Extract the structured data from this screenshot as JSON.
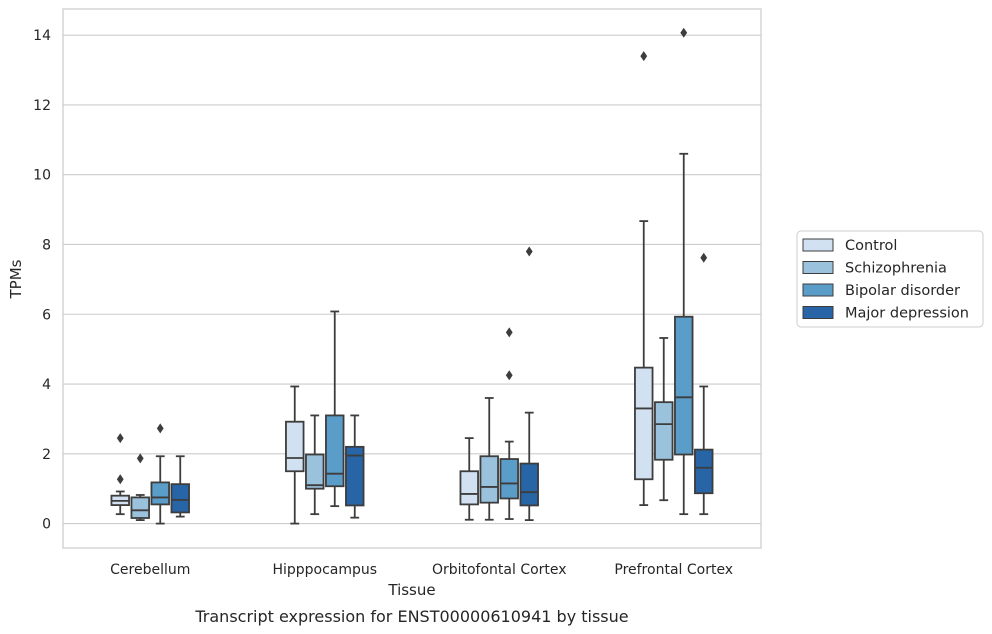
{
  "chart_data": {
    "type": "box",
    "title": "",
    "caption": "Transcript expression for ENST00000610941 by tissue",
    "xlabel": "Tissue",
    "ylabel": "TPMs",
    "ylim": [
      -0.7,
      14.75
    ],
    "yticks": [
      0,
      2,
      4,
      6,
      8,
      10,
      12,
      14
    ],
    "grid": true,
    "legend_position": "right",
    "categories": [
      "Cerebellum",
      "Hipppocampus",
      "Orbitofontal Cortex",
      "Prefrontal Cortex"
    ],
    "series": [
      {
        "name": "Control",
        "color": "#d1e1f1",
        "boxes": [
          {
            "whisker_low": 0.27,
            "q1": 0.53,
            "median": 0.65,
            "q3": 0.8,
            "whisker_high": 0.92,
            "outliers": [
              1.27,
              2.45
            ]
          },
          {
            "whisker_low": 0.0,
            "q1": 1.5,
            "median": 1.88,
            "q3": 2.92,
            "whisker_high": 3.93,
            "outliers": []
          },
          {
            "whisker_low": 0.11,
            "q1": 0.55,
            "median": 0.85,
            "q3": 1.5,
            "whisker_high": 2.45,
            "outliers": []
          },
          {
            "whisker_low": 0.53,
            "q1": 1.27,
            "median": 3.3,
            "q3": 4.47,
            "whisker_high": 8.67,
            "outliers": [
              13.4
            ]
          }
        ]
      },
      {
        "name": "Schizophrenia",
        "color": "#9bc2dd",
        "boxes": [
          {
            "whisker_low": 0.1,
            "q1": 0.16,
            "median": 0.38,
            "q3": 0.75,
            "whisker_high": 0.82,
            "outliers": [
              1.87
            ]
          },
          {
            "whisker_low": 0.27,
            "q1": 1.0,
            "median": 1.1,
            "q3": 1.98,
            "whisker_high": 3.1,
            "outliers": []
          },
          {
            "whisker_low": 0.11,
            "q1": 0.6,
            "median": 1.05,
            "q3": 1.93,
            "whisker_high": 3.6,
            "outliers": []
          },
          {
            "whisker_low": 0.67,
            "q1": 1.83,
            "median": 2.85,
            "q3": 3.48,
            "whisker_high": 5.32,
            "outliers": []
          }
        ]
      },
      {
        "name": "Bipolar disorder",
        "color": "#5b9dc9",
        "boxes": [
          {
            "whisker_low": 0.0,
            "q1": 0.55,
            "median": 0.75,
            "q3": 1.18,
            "whisker_high": 1.93,
            "outliers": [
              2.73
            ]
          },
          {
            "whisker_low": 0.5,
            "q1": 1.07,
            "median": 1.43,
            "q3": 3.1,
            "whisker_high": 6.08,
            "outliers": []
          },
          {
            "whisker_low": 0.13,
            "q1": 0.72,
            "median": 1.15,
            "q3": 1.85,
            "whisker_high": 2.35,
            "outliers": [
              4.25,
              5.48
            ]
          },
          {
            "whisker_low": 0.27,
            "q1": 1.98,
            "median": 3.62,
            "q3": 5.93,
            "whisker_high": 10.6,
            "outliers": [
              14.07
            ]
          }
        ]
      },
      {
        "name": "Major depression",
        "color": "#2765a7",
        "boxes": [
          {
            "whisker_low": 0.2,
            "q1": 0.32,
            "median": 0.68,
            "q3": 1.13,
            "whisker_high": 1.93,
            "outliers": []
          },
          {
            "whisker_low": 0.17,
            "q1": 0.52,
            "median": 1.95,
            "q3": 2.2,
            "whisker_high": 3.1,
            "outliers": []
          },
          {
            "whisker_low": 0.1,
            "q1": 0.52,
            "median": 0.9,
            "q3": 1.72,
            "whisker_high": 3.18,
            "outliers": [
              7.8
            ]
          },
          {
            "whisker_low": 0.27,
            "q1": 0.87,
            "median": 1.6,
            "q3": 2.12,
            "whisker_high": 3.93,
            "outliers": [
              7.62
            ]
          }
        ]
      }
    ]
  }
}
